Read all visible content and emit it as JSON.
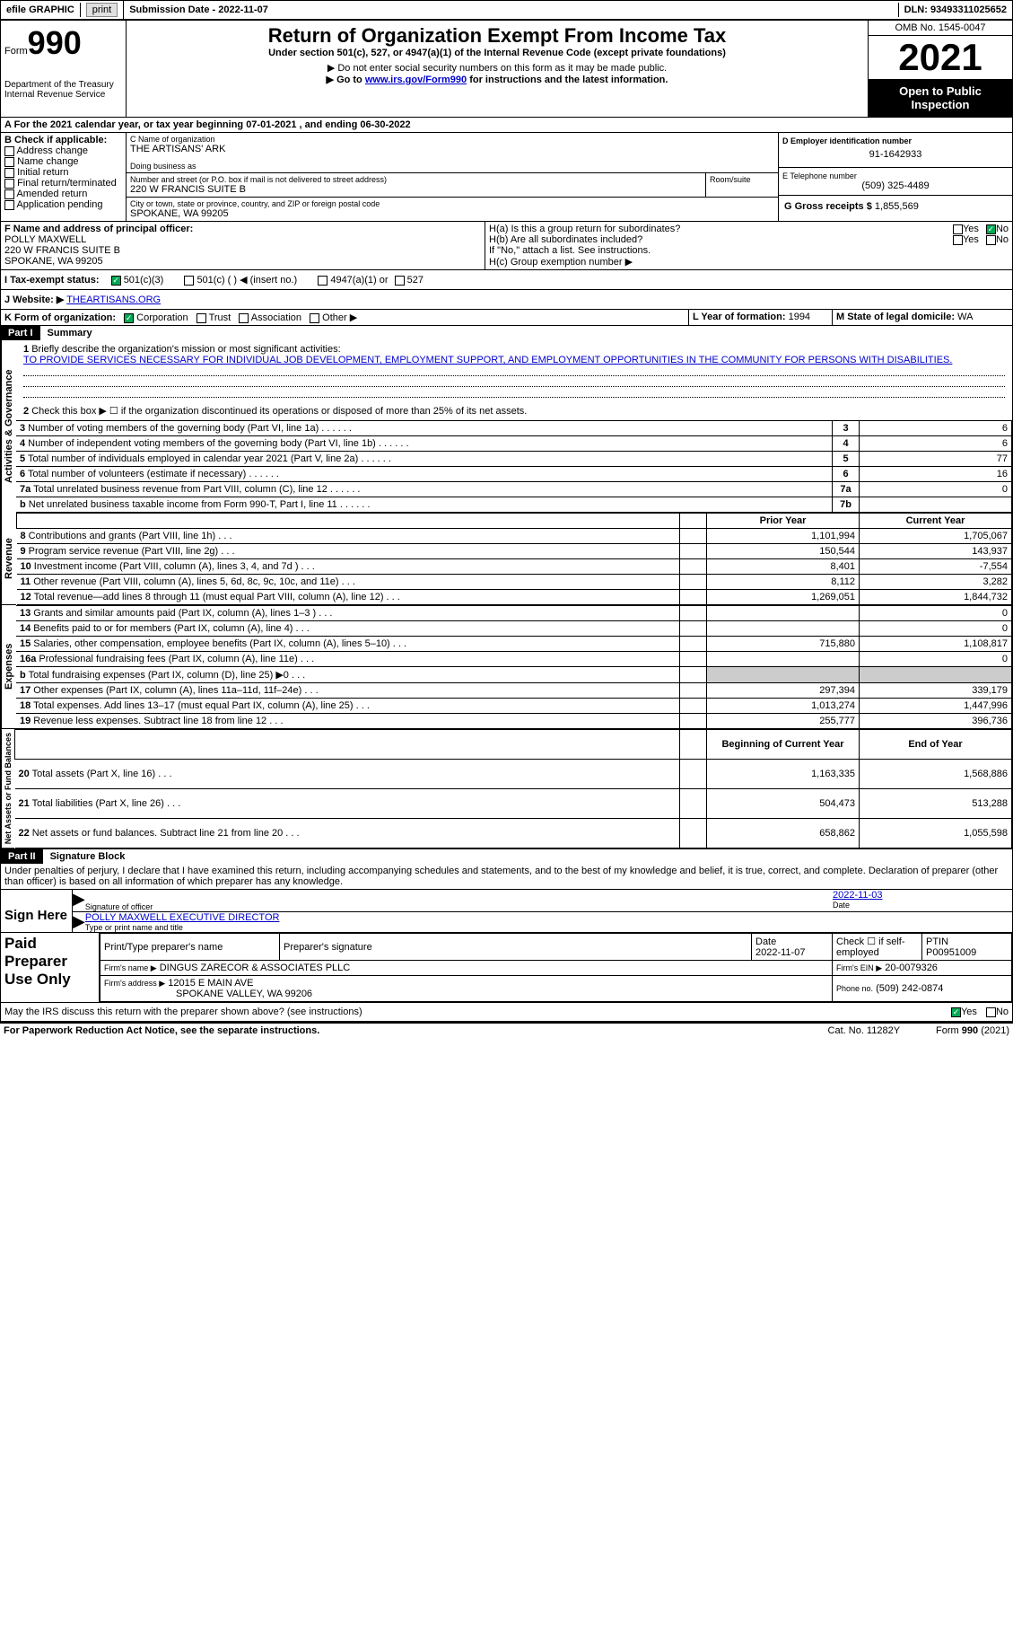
{
  "topbar": {
    "efile_label": "efile GRAPHIC",
    "print_btn": "print",
    "submission_label": "Submission Date - 2022-11-07",
    "dln_label": "DLN: 93493311025652"
  },
  "header": {
    "form_word": "Form",
    "form_num": "990",
    "dept": "Department of the Treasury Internal Revenue Service",
    "title": "Return of Organization Exempt From Income Tax",
    "sub1": "Under section 501(c), 527, or 4947(a)(1) of the Internal Revenue Code (except private foundations)",
    "sub2": "▶ Do not enter social security numbers on this form as it may be made public.",
    "sub3_pre": "▶ Go to ",
    "sub3_link": "www.irs.gov/Form990",
    "sub3_post": " for instructions and the latest information.",
    "omb": "OMB No. 1545-0047",
    "year": "2021",
    "open_pub": "Open to Public Inspection"
  },
  "A": {
    "line": "A For the 2021 calendar year, or tax year beginning 07-01-2021   , and ending 06-30-2022"
  },
  "B": {
    "label": "B Check if applicable:",
    "opts": [
      "Address change",
      "Name change",
      "Initial return",
      "Final return/terminated",
      "Amended return",
      "Application pending"
    ]
  },
  "C": {
    "name_lbl": "C Name of organization",
    "name": "THE ARTISANS' ARK",
    "dba_lbl": "Doing business as",
    "street_lbl": "Number and street (or P.O. box if mail is not delivered to street address)",
    "room_lbl": "Room/suite",
    "street": "220 W FRANCIS SUITE B",
    "city_lbl": "City or town, state or province, country, and ZIP or foreign postal code",
    "city": "SPOKANE, WA  99205"
  },
  "D": {
    "lbl": "D Employer identification number",
    "val": "91-1642933"
  },
  "E": {
    "lbl": "E Telephone number",
    "val": "(509) 325-4489"
  },
  "G": {
    "lbl": "G Gross receipts $",
    "val": "1,855,569"
  },
  "F": {
    "lbl": "F Name and address of principal officer:",
    "name": "POLLY MAXWELL",
    "addr1": "220 W FRANCIS SUITE B",
    "addr2": "SPOKANE, WA  99205"
  },
  "H": {
    "a_lbl": "H(a)  Is this a group return for subordinates?",
    "b_lbl": "H(b)  Are all subordinates included?",
    "note": "If \"No,\" attach a list. See instructions.",
    "c_lbl": "H(c)  Group exemption number ▶",
    "yes": "Yes",
    "no": "No"
  },
  "I": {
    "lbl": "I   Tax-exempt status:",
    "o1": "501(c)(3)",
    "o2": "501(c) (  ) ◀ (insert no.)",
    "o3": "4947(a)(1) or",
    "o4": "527"
  },
  "J": {
    "lbl": "J   Website: ▶",
    "val": "THEARTISANS.ORG"
  },
  "K": {
    "lbl": "K Form of organization:",
    "o1": "Corporation",
    "o2": "Trust",
    "o3": "Association",
    "o4": "Other ▶"
  },
  "L": {
    "lbl": "L Year of formation:",
    "val": "1994"
  },
  "M": {
    "lbl": "M State of legal domicile:",
    "val": "WA"
  },
  "part1": {
    "hdr": "Part I",
    "title": "Summary",
    "q1_lbl": "Briefly describe the organization's mission or most significant activities:",
    "q1_txt": "TO PROVIDE SERVICES NECESSARY FOR INDIVIDUAL JOB DEVELOPMENT, EMPLOYMENT SUPPORT, AND EMPLOYMENT OPPORTUNITIES IN THE COMMUNITY FOR PERSONS WITH DISABILITIES.",
    "q2": "Check this box ▶ ☐ if the organization discontinued its operations or disposed of more than 25% of its net assets.",
    "side_act": "Activities & Governance",
    "side_rev": "Revenue",
    "side_exp": "Expenses",
    "side_net": "Net Assets or Fund Balances",
    "rows_top": [
      {
        "n": "3",
        "t": "Number of voting members of the governing body (Part VI, line 1a)",
        "box": "3",
        "v": "6"
      },
      {
        "n": "4",
        "t": "Number of independent voting members of the governing body (Part VI, line 1b)",
        "box": "4",
        "v": "6"
      },
      {
        "n": "5",
        "t": "Total number of individuals employed in calendar year 2021 (Part V, line 2a)",
        "box": "5",
        "v": "77"
      },
      {
        "n": "6",
        "t": "Total number of volunteers (estimate if necessary)",
        "box": "6",
        "v": "16"
      },
      {
        "n": "7a",
        "t": "Total unrelated business revenue from Part VIII, column (C), line 12",
        "box": "7a",
        "v": "0"
      },
      {
        "n": "b",
        "t": "Net unrelated business taxable income from Form 990-T, Part I, line 11",
        "box": "7b",
        "v": ""
      }
    ],
    "col_prior": "Prior Year",
    "col_curr": "Current Year",
    "rows_rev": [
      {
        "n": "8",
        "t": "Contributions and grants (Part VIII, line 1h)",
        "p": "1,101,994",
        "c": "1,705,067"
      },
      {
        "n": "9",
        "t": "Program service revenue (Part VIII, line 2g)",
        "p": "150,544",
        "c": "143,937"
      },
      {
        "n": "10",
        "t": "Investment income (Part VIII, column (A), lines 3, 4, and 7d )",
        "p": "8,401",
        "c": "-7,554"
      },
      {
        "n": "11",
        "t": "Other revenue (Part VIII, column (A), lines 5, 6d, 8c, 9c, 10c, and 11e)",
        "p": "8,112",
        "c": "3,282"
      },
      {
        "n": "12",
        "t": "Total revenue—add lines 8 through 11 (must equal Part VIII, column (A), line 12)",
        "p": "1,269,051",
        "c": "1,844,732"
      }
    ],
    "rows_exp": [
      {
        "n": "13",
        "t": "Grants and similar amounts paid (Part IX, column (A), lines 1–3 )",
        "p": "",
        "c": "0"
      },
      {
        "n": "14",
        "t": "Benefits paid to or for members (Part IX, column (A), line 4)",
        "p": "",
        "c": "0"
      },
      {
        "n": "15",
        "t": "Salaries, other compensation, employee benefits (Part IX, column (A), lines 5–10)",
        "p": "715,880",
        "c": "1,108,817"
      },
      {
        "n": "16a",
        "t": "Professional fundraising fees (Part IX, column (A), line 11e)",
        "p": "",
        "c": "0"
      },
      {
        "n": "b",
        "t": "Total fundraising expenses (Part IX, column (D), line 25) ▶0",
        "p": "grey",
        "c": "grey"
      },
      {
        "n": "17",
        "t": "Other expenses (Part IX, column (A), lines 11a–11d, 11f–24e)",
        "p": "297,394",
        "c": "339,179"
      },
      {
        "n": "18",
        "t": "Total expenses. Add lines 13–17 (must equal Part IX, column (A), line 25)",
        "p": "1,013,274",
        "c": "1,447,996"
      },
      {
        "n": "19",
        "t": "Revenue less expenses. Subtract line 18 from line 12",
        "p": "255,777",
        "c": "396,736"
      }
    ],
    "col_beg": "Beginning of Current Year",
    "col_end": "End of Year",
    "rows_net": [
      {
        "n": "20",
        "t": "Total assets (Part X, line 16)",
        "p": "1,163,335",
        "c": "1,568,886"
      },
      {
        "n": "21",
        "t": "Total liabilities (Part X, line 26)",
        "p": "504,473",
        "c": "513,288"
      },
      {
        "n": "22",
        "t": "Net assets or fund balances. Subtract line 21 from line 20",
        "p": "658,862",
        "c": "1,055,598"
      }
    ]
  },
  "part2": {
    "hdr": "Part II",
    "title": "Signature Block",
    "decl": "Under penalties of perjury, I declare that I have examined this return, including accompanying schedules and statements, and to the best of my knowledge and belief, it is true, correct, and complete. Declaration of preparer (other than officer) is based on all information of which preparer has any knowledge.",
    "sign_here": "Sign Here",
    "sig_off": "Signature of officer",
    "sig_date": "Date",
    "sig_date_val": "2022-11-03",
    "name_title": "POLLY MAXWELL  EXECUTIVE DIRECTOR",
    "name_title_lbl": "Type or print name and title",
    "paid": "Paid Preparer Use Only",
    "prep_name_lbl": "Print/Type preparer's name",
    "prep_sig_lbl": "Preparer's signature",
    "prep_date_lbl": "Date",
    "prep_date_val": "2022-11-07",
    "self_emp": "Check ☐ if self-employed",
    "ptin_lbl": "PTIN",
    "ptin_val": "P00951009",
    "firm_name_lbl": "Firm's name    ▶",
    "firm_name": "DINGUS ZARECOR & ASSOCIATES PLLC",
    "firm_ein_lbl": "Firm's EIN ▶",
    "firm_ein": "20-0079326",
    "firm_addr_lbl": "Firm's address ▶",
    "firm_addr1": "12015 E MAIN AVE",
    "firm_addr2": "SPOKANE VALLEY, WA  99206",
    "phone_lbl": "Phone no.",
    "phone": "(509) 242-0874",
    "discuss": "May the IRS discuss this return with the preparer shown above? (see instructions)",
    "yes": "Yes",
    "no": "No"
  },
  "footer": {
    "pra": "For Paperwork Reduction Act Notice, see the separate instructions.",
    "cat": "Cat. No. 11282Y",
    "form": "Form 990 (2021)"
  }
}
